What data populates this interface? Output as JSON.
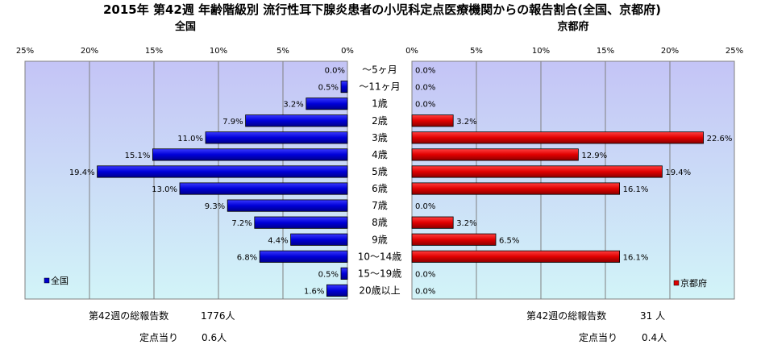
{
  "title": "2015年 第42週 年齢階級別 流行性耳下腺炎患者の小児科定点医療機関からの報告割合(全国、京都府)",
  "colors": {
    "national": "#0000cc",
    "kyoto": "#dd0000",
    "plot_bg_top": "#c4c4f6",
    "plot_bg_bottom": "#d2f4f8"
  },
  "chart_data": [
    {
      "type": "bar",
      "orientation": "horizontal",
      "direction": "right-to-left",
      "title": "全国",
      "legend": "全国",
      "legend_position": "bottom-left",
      "xlim": [
        0,
        25
      ],
      "ticks": [
        "25%",
        "20%",
        "15%",
        "10%",
        "5%",
        "0%"
      ],
      "tick_values": [
        25,
        20,
        15,
        10,
        5,
        0
      ],
      "grid": true,
      "categories": [
        "～5ヶ月",
        "～11ヶ月",
        "1歳",
        "2歳",
        "3歳",
        "4歳",
        "5歳",
        "6歳",
        "7歳",
        "8歳",
        "9歳",
        "10～14歳",
        "15～19歳",
        "20歳以上"
      ],
      "values": [
        0.0,
        0.5,
        3.2,
        7.9,
        11.0,
        15.1,
        19.4,
        13.0,
        9.3,
        7.2,
        4.4,
        6.8,
        0.5,
        1.6
      ],
      "labels": [
        "0.0%",
        "0.5%",
        "3.2%",
        "7.9%",
        "11.0%",
        "15.1%",
        "19.4%",
        "13.0%",
        "9.3%",
        "7.2%",
        "4.4%",
        "6.8%",
        "0.5%",
        "1.6%"
      ]
    },
    {
      "type": "bar",
      "orientation": "horizontal",
      "direction": "left-to-right",
      "title": "京都府",
      "legend": "京都府",
      "legend_position": "bottom-right",
      "xlim": [
        0,
        25
      ],
      "ticks": [
        "0%",
        "5%",
        "10%",
        "15%",
        "20%",
        "25%"
      ],
      "tick_values": [
        0,
        5,
        10,
        15,
        20,
        25
      ],
      "grid": true,
      "categories": [
        "～5ヶ月",
        "～11ヶ月",
        "1歳",
        "2歳",
        "3歳",
        "4歳",
        "5歳",
        "6歳",
        "7歳",
        "8歳",
        "9歳",
        "10～14歳",
        "15～19歳",
        "20歳以上"
      ],
      "values": [
        0.0,
        0.0,
        0.0,
        3.2,
        22.6,
        12.9,
        19.4,
        16.1,
        0.0,
        3.2,
        6.5,
        16.1,
        0.0,
        0.0
      ],
      "labels": [
        "0.0%",
        "0.0%",
        "0.0%",
        "3.2%",
        "22.6%",
        "12.9%",
        "19.4%",
        "16.1%",
        "0.0%",
        "3.2%",
        "6.5%",
        "16.1%",
        "0.0%",
        "0.0%"
      ]
    }
  ],
  "footer": {
    "national_total_label": "第42週の総報告数",
    "national_total_value": "1776人",
    "national_per_label": "定点当り",
    "national_per_value": "0.6人",
    "kyoto_total_label": "第42週の総報告数",
    "kyoto_total_value": "31 人",
    "kyoto_per_label": "定点当り",
    "kyoto_per_value": "0.4人"
  }
}
